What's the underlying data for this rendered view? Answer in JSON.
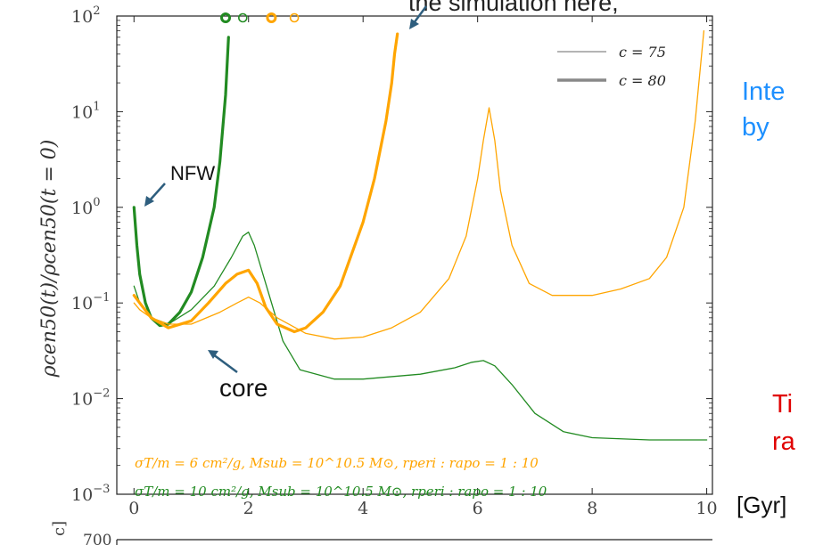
{
  "chart_data": {
    "type": "line",
    "xlabel": "",
    "ylabel": "ρcen50(t)/ρcen50(t = 0)",
    "xlim": [
      -0.3,
      10.1
    ],
    "ylim_log10": [
      -3,
      2
    ],
    "yscale": "log",
    "grid": false,
    "x_ticks": [
      0,
      2,
      4,
      6,
      8,
      10
    ],
    "y_ticks": [
      {
        "exp": 2,
        "base": "10",
        "sup": "2"
      },
      {
        "exp": 1,
        "base": "10",
        "sup": "1"
      },
      {
        "exp": 0,
        "base": "10",
        "sup": "0"
      },
      {
        "exp": -1,
        "base": "10",
        "sup": "−1"
      },
      {
        "exp": -2,
        "base": "10",
        "sup": "−2"
      },
      {
        "exp": -3,
        "base": "10",
        "sup": "−3"
      }
    ],
    "legend": {
      "position": "top-right",
      "entries": [
        {
          "label": "c = 75",
          "width": "thin"
        },
        {
          "label": "c = 80",
          "width": "thick"
        }
      ]
    },
    "series": [
      {
        "color": "#228B22",
        "width": "thick",
        "x": [
          0,
          0.05,
          0.1,
          0.2,
          0.3,
          0.45,
          0.6,
          0.8,
          1.0,
          1.2,
          1.4,
          1.5,
          1.6,
          1.65
        ],
        "y": [
          1.0,
          0.4,
          0.2,
          0.1,
          0.07,
          0.058,
          0.06,
          0.08,
          0.13,
          0.3,
          1.0,
          3.0,
          15,
          60
        ]
      },
      {
        "color": "#228B22",
        "width": "thin",
        "x": [
          0,
          0.1,
          0.3,
          0.6,
          1.0,
          1.4,
          1.7,
          1.9,
          2.0,
          2.1,
          2.3,
          2.6,
          2.9,
          3.5,
          4.0,
          5.0,
          5.6,
          5.9,
          6.1,
          6.3,
          6.6,
          7.0,
          7.5,
          8.0,
          9.0,
          10.0
        ],
        "y": [
          0.15,
          0.1,
          0.07,
          0.06,
          0.085,
          0.15,
          0.3,
          0.5,
          0.55,
          0.4,
          0.16,
          0.04,
          0.02,
          0.016,
          0.016,
          0.018,
          0.021,
          0.024,
          0.025,
          0.022,
          0.014,
          0.007,
          0.0045,
          0.0039,
          0.0037,
          0.0037
        ]
      },
      {
        "color": "#FFA500",
        "width": "thick",
        "x": [
          0,
          0.1,
          0.3,
          0.6,
          1.0,
          1.3,
          1.6,
          1.8,
          2.0,
          2.15,
          2.3,
          2.5,
          2.8,
          3.0,
          3.3,
          3.6,
          4.0,
          4.2,
          4.4,
          4.5,
          4.55,
          4.6
        ],
        "y": [
          0.12,
          0.1,
          0.07,
          0.055,
          0.065,
          0.1,
          0.16,
          0.2,
          0.22,
          0.16,
          0.09,
          0.06,
          0.05,
          0.055,
          0.08,
          0.15,
          0.7,
          2.0,
          8.0,
          20,
          40,
          65
        ]
      },
      {
        "color": "#FFA500",
        "width": "thin",
        "x": [
          0,
          0.1,
          0.3,
          0.6,
          1.0,
          1.5,
          1.8,
          2.0,
          2.2,
          2.5,
          3.0,
          3.5,
          4.0,
          4.5,
          5.0,
          5.5,
          5.8,
          6.0,
          6.1,
          6.2,
          6.3,
          6.4,
          6.6,
          6.9,
          7.3,
          8.0,
          8.5,
          9.0,
          9.3,
          9.6,
          9.8,
          9.95
        ],
        "y": [
          0.1,
          0.085,
          0.07,
          0.06,
          0.06,
          0.08,
          0.1,
          0.115,
          0.1,
          0.07,
          0.048,
          0.042,
          0.044,
          0.055,
          0.08,
          0.18,
          0.5,
          2.0,
          5.0,
          11,
          5.0,
          1.5,
          0.4,
          0.16,
          0.12,
          0.12,
          0.14,
          0.18,
          0.3,
          1.0,
          8.0,
          70
        ]
      }
    ],
    "markers": [
      {
        "x": 1.6,
        "color": "#228B22",
        "filled": false,
        "weight": "bold"
      },
      {
        "x": 1.9,
        "color": "#228B22",
        "filled": false,
        "weight": "normal"
      },
      {
        "x": 2.4,
        "color": "#FFA500",
        "filled": false,
        "weight": "bold"
      },
      {
        "x": 2.8,
        "color": "#FFA500",
        "filled": false,
        "weight": "normal"
      }
    ],
    "annotations": [
      {
        "text": "σT/m = 6 cm²/g, Msub = 10^10.5 M⊙, rperi : rapo = 1 : 10",
        "color": "#FFA500"
      },
      {
        "text": "σT/m = 10 cm²/g, Msub = 10^10.5 M⊙, rperi : rapo = 1 : 10",
        "color": "#228B22"
      }
    ]
  },
  "slide": {
    "top_text": "the simulation here,",
    "nfw_label": "NFW",
    "core_label": "core",
    "right_blue_line1": "Inte",
    "right_blue_line2": "by",
    "right_red_line1": "Ti",
    "right_red_line2": "ra",
    "gyr_label": "[Gyr]",
    "colors": {
      "blue": "#1E90FF",
      "red": "#E00000",
      "arrow": "#2E5E7E"
    }
  },
  "lower_panel": {
    "partial_tick": "700",
    "partial_ylabel": "c]"
  }
}
